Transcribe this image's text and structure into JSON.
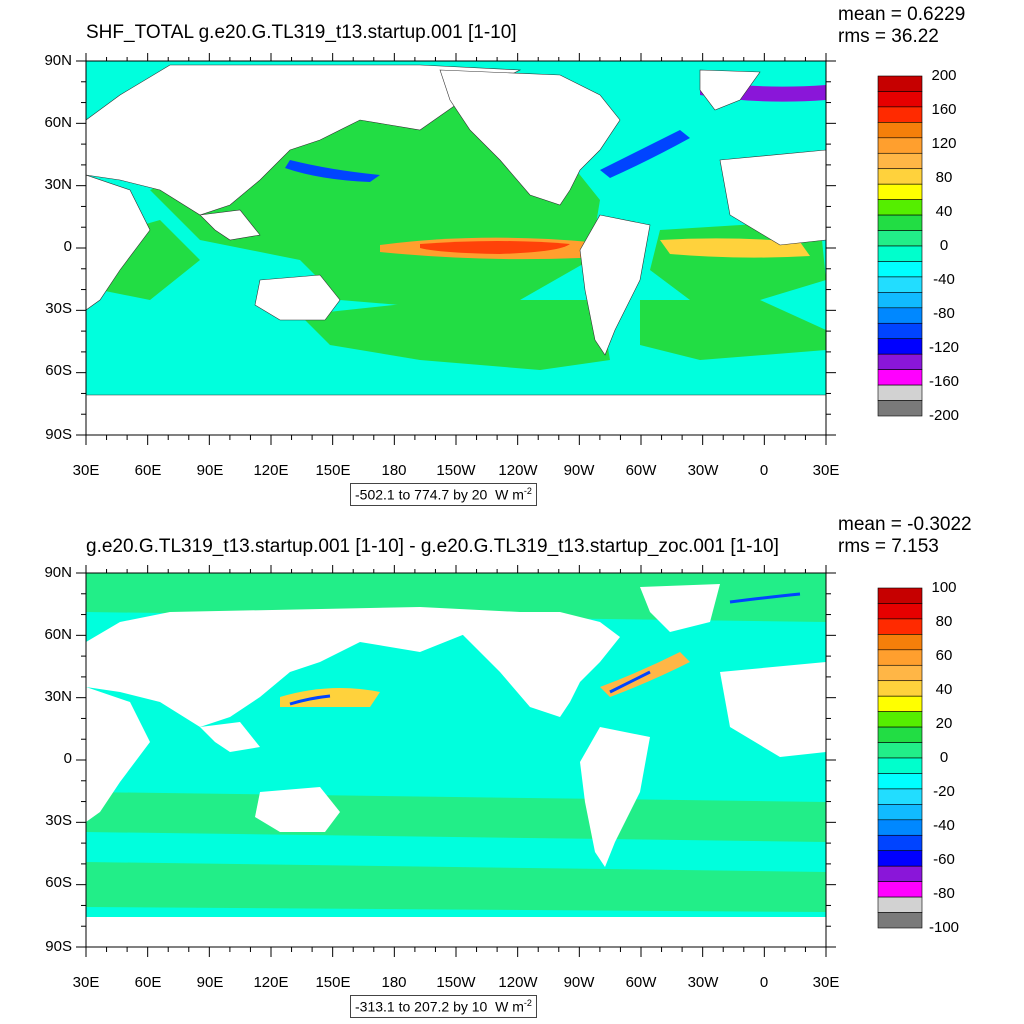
{
  "panels": [
    {
      "title": "SHF_TOTAL g.e20.G.TL319_t13.startup.001 [1-10]",
      "mean_text": "mean = 0.6229",
      "rms_text": "rms = 36.22",
      "lat_labels": [
        "90N",
        "60N",
        "30N",
        "0",
        "30S",
        "60S",
        "90S"
      ],
      "lon_labels": [
        "30E",
        "60E",
        "90E",
        "120E",
        "150E",
        "180",
        "150W",
        "120W",
        "90W",
        "60W",
        "30W",
        "0",
        "30E"
      ],
      "info_text": "-502.1 to 774.7 by 20",
      "units_text": "W m",
      "units_exp": "-2",
      "colorbar_labels": [
        "200",
        "160",
        "120",
        "80",
        "40",
        "0",
        "-40",
        "-80",
        "-120",
        "-160",
        "-200"
      ],
      "colorbar_colors": [
        "#c60000",
        "#e60000",
        "#ff2a00",
        "#f57f0a",
        "#ff9f2e",
        "#ffb646",
        "#ffd23c",
        "#ffff00",
        "#55ee00",
        "#22dd44",
        "#22ee88",
        "#00ffcc",
        "#00ffff",
        "#22ddff",
        "#11bbff",
        "#0088ff",
        "#0044ff",
        "#0000ff",
        "#8a16d9",
        "#ff00ff",
        "#d2d2d2",
        "#7a7a7a"
      ]
    },
    {
      "title": "g.e20.G.TL319_t13.startup.001 [1-10] - g.e20.G.TL319_t13.startup_zoc.001 [1-10]",
      "mean_text": "mean = -0.3022",
      "rms_text": "rms = 7.153",
      "lat_labels": [
        "90N",
        "60N",
        "30N",
        "0",
        "30S",
        "60S",
        "90S"
      ],
      "lon_labels": [
        "30E",
        "60E",
        "90E",
        "120E",
        "150E",
        "180",
        "150W",
        "120W",
        "90W",
        "60W",
        "30W",
        "0",
        "30E"
      ],
      "info_text": "-313.1 to 207.2 by 10",
      "units_text": "W m",
      "units_exp": "-2",
      "colorbar_labels": [
        "100",
        "80",
        "60",
        "40",
        "20",
        "0",
        "-20",
        "-40",
        "-60",
        "-80",
        "-100"
      ],
      "colorbar_colors": [
        "#c60000",
        "#e60000",
        "#ff2a00",
        "#f57f0a",
        "#ff9f2e",
        "#ffb646",
        "#ffd23c",
        "#ffff00",
        "#55ee00",
        "#22dd44",
        "#22ee88",
        "#00ffcc",
        "#00ffff",
        "#22ddff",
        "#11bbff",
        "#0088ff",
        "#0044ff",
        "#0000ff",
        "#8a16d9",
        "#ff00ff",
        "#d2d2d2",
        "#7a7a7a"
      ]
    }
  ],
  "colors": {
    "ocean_background": "#00ffdd",
    "land": "#ffffff",
    "equatorial_warm": "#ff9f2e",
    "positive_band": "#22dd44",
    "negative_band": "#00e5ff",
    "strong_negative": "#0044ff"
  }
}
